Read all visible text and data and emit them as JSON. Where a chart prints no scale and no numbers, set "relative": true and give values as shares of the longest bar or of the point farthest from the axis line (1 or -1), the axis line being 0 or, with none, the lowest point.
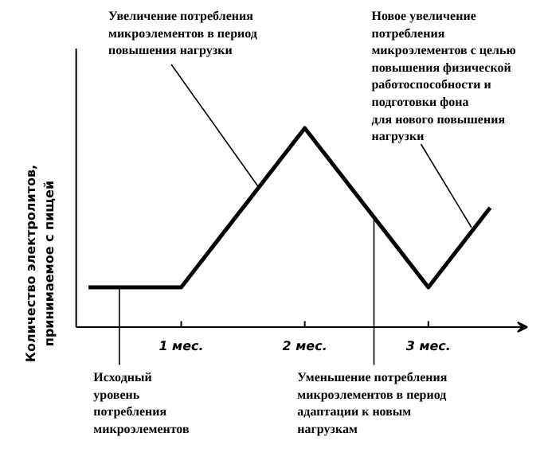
{
  "chart_data": {
    "type": "line",
    "relative": true,
    "ylabel": "Количество электролитов,\nпринимаемое с пищей",
    "x": [
      0.25,
      1,
      2,
      3,
      3.5
    ],
    "values": [
      0.2,
      0.2,
      1,
      0.2,
      0.6
    ],
    "color": "#000000",
    "xlim": [
      0.15,
      3.8
    ],
    "xticks": [
      {
        "value": 1,
        "label": "1 мес."
      },
      {
        "value": 2,
        "label": "2 мес."
      },
      {
        "value": 3,
        "label": "3 мес."
      }
    ],
    "annotations": [
      {
        "text": "Увеличение потребления\nмикроэлементов в период\nповышения нагрузки",
        "x": 1.63,
        "y": 0.7
      },
      {
        "text": "Новое увеличение\nпотребления\nмикроэлементов с целью\nповышения физической\nработоспособности и\nподготовки фона\nдля нового повышения\nнагрузки",
        "x": 3.35,
        "y": 0.5
      },
      {
        "text": "Исходный\nуровень\nпотребления\nмикроэлементов",
        "x": 0.5,
        "y": 0.2
      },
      {
        "text": "Уменьшение потребления\nмикроэлементов в период\nадаптации к новым\nнагрузкам",
        "x": 2.56,
        "y": 0.54
      }
    ]
  }
}
